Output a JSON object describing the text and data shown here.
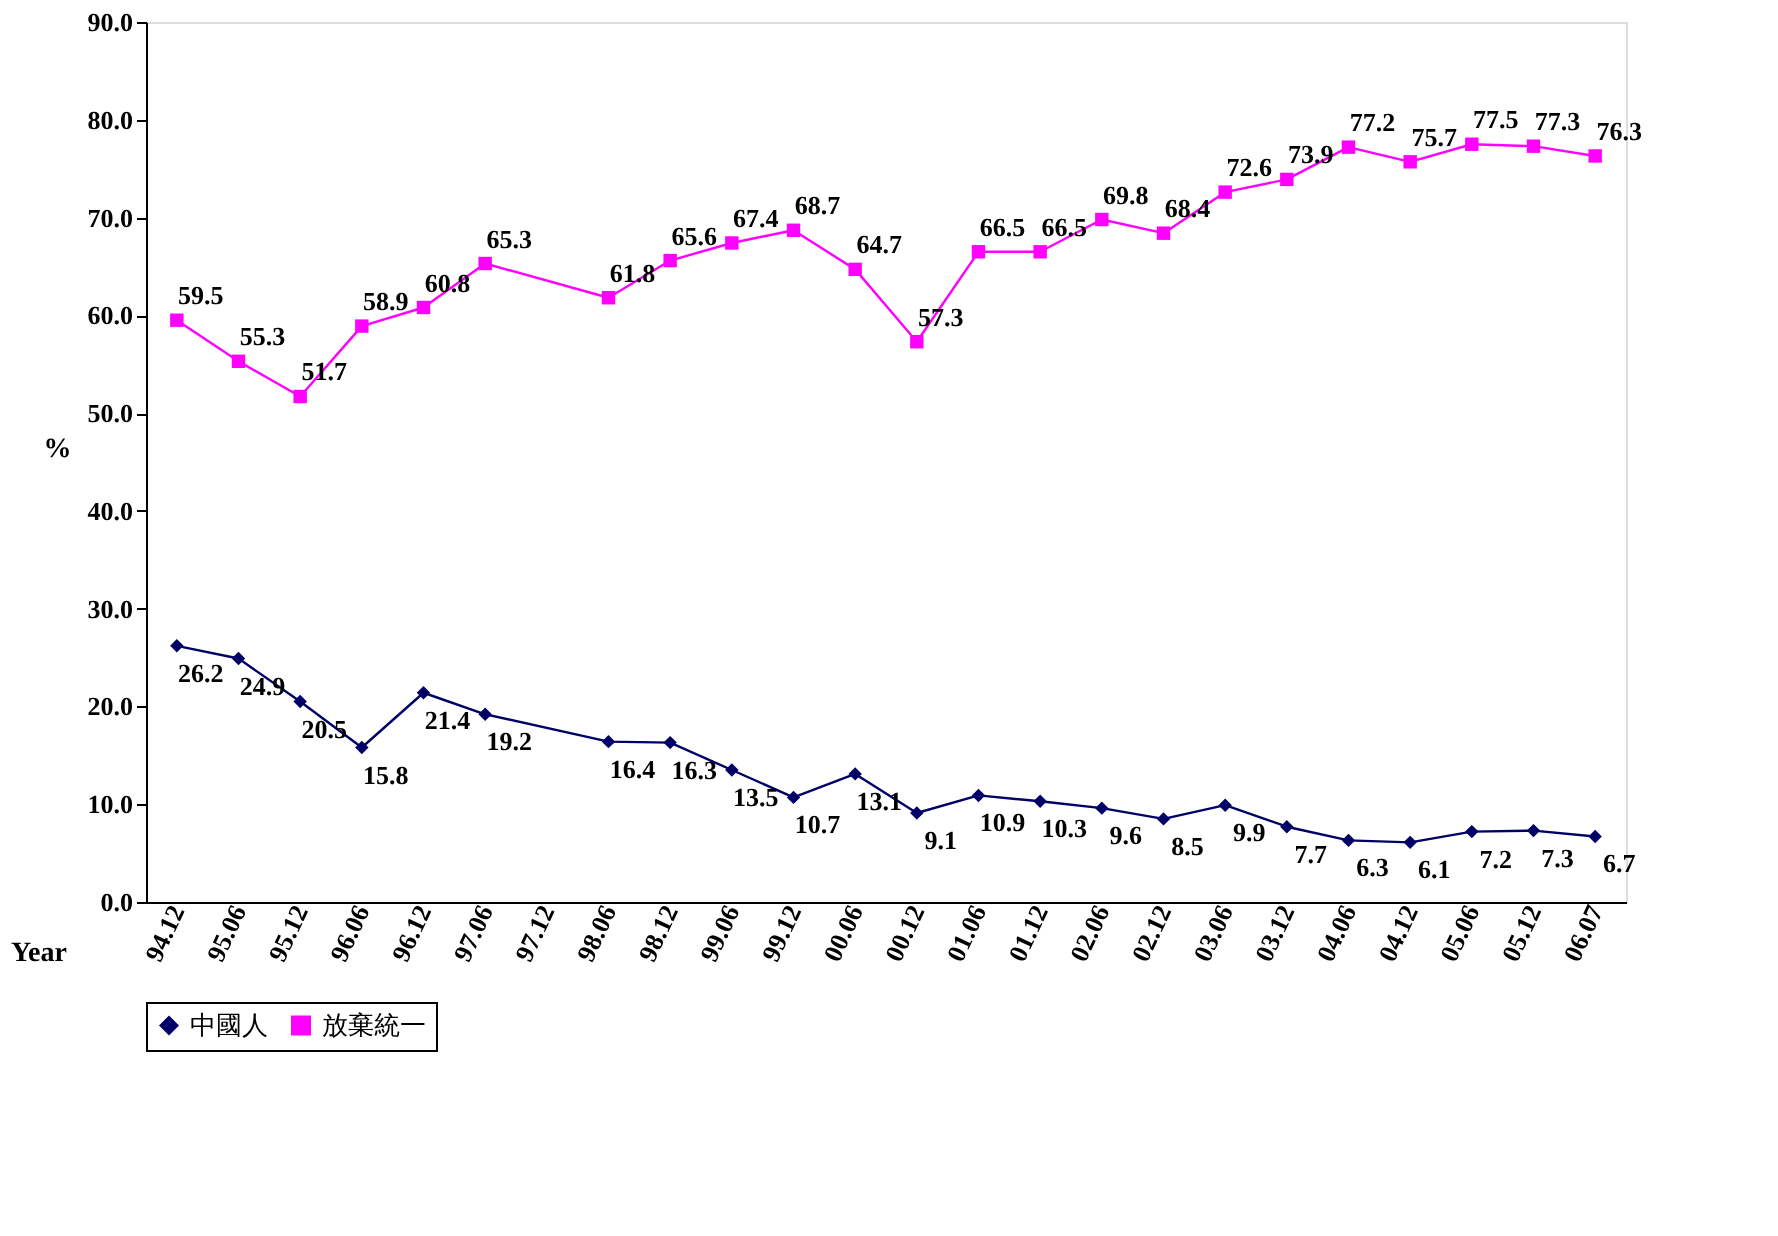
{
  "chart_data": {
    "type": "line",
    "xlabel": "Year",
    "ylabel": "%",
    "categories": [
      "94.12",
      "95.06",
      "95.12",
      "96.06",
      "96.12",
      "97.06",
      "97.12",
      "98.06",
      "98.12",
      "99.06",
      "99.12",
      "00.06",
      "00.12",
      "01.06",
      "01.12",
      "02.06",
      "02.12",
      "03.06",
      "03.12",
      "04.06",
      "04.12",
      "05.06",
      "05.12",
      "06.07"
    ],
    "series": [
      {
        "name": "中國人",
        "color": "#000066",
        "marker": "diamond",
        "values": [
          26.2,
          24.9,
          20.5,
          15.8,
          21.4,
          19.2,
          null,
          16.4,
          16.3,
          13.5,
          10.7,
          13.1,
          9.1,
          10.9,
          10.3,
          9.6,
          8.5,
          9.9,
          7.7,
          6.3,
          6.1,
          7.2,
          7.3,
          6.7
        ]
      },
      {
        "name": "放棄統一",
        "color": "#ff00ff",
        "marker": "square",
        "values": [
          59.5,
          55.3,
          51.7,
          58.9,
          60.8,
          65.3,
          null,
          61.8,
          65.6,
          67.4,
          68.7,
          64.7,
          57.3,
          66.5,
          66.5,
          69.8,
          68.4,
          72.6,
          73.9,
          77.2,
          75.7,
          77.5,
          77.3,
          76.3
        ]
      }
    ],
    "ylim": [
      0,
      90
    ],
    "yticks": [
      {
        "value": 0,
        "label": "0.0"
      },
      {
        "value": 10,
        "label": "10.0"
      },
      {
        "value": 20,
        "label": "20.0"
      },
      {
        "value": 30,
        "label": "30.0"
      },
      {
        "value": 40,
        "label": "40.0"
      },
      {
        "value": 50,
        "label": "50.0"
      },
      {
        "value": 60,
        "label": "60.0"
      },
      {
        "value": 70,
        "label": "70.0"
      },
      {
        "value": 80,
        "label": "80.0"
      },
      {
        "value": 90,
        "label": "90.0"
      }
    ],
    "data_labels": true,
    "grid": false,
    "legend": "bottom",
    "line_style": "solid"
  }
}
